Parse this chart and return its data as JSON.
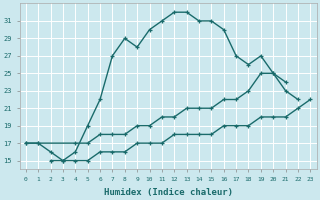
{
  "xlabel": "Humidex (Indice chaleur)",
  "bg_color": "#cce8ee",
  "grid_color": "#ffffff",
  "line_color": "#1a6b6b",
  "xticks": [
    0,
    1,
    2,
    3,
    4,
    5,
    6,
    7,
    8,
    9,
    10,
    11,
    12,
    13,
    14,
    15,
    16,
    17,
    18,
    19,
    20,
    21,
    22,
    23
  ],
  "yticks": [
    15,
    17,
    19,
    21,
    23,
    25,
    27,
    29,
    31
  ],
  "line1_x": [
    0,
    1,
    2,
    3,
    4,
    5,
    6,
    7,
    8,
    9,
    10,
    11,
    12,
    13,
    14,
    15,
    16,
    17,
    18,
    19,
    20,
    21,
    22
  ],
  "line1_y": [
    17,
    17,
    16,
    15,
    16,
    19,
    22,
    27,
    29,
    28,
    30,
    31,
    32,
    32,
    31,
    31,
    30,
    27,
    26,
    27,
    25,
    23,
    22
  ],
  "line2_x": [
    0,
    1,
    4,
    5,
    6,
    7,
    8,
    9,
    10,
    11,
    12,
    13,
    14,
    15,
    16,
    17,
    18,
    19,
    20,
    21
  ],
  "line2_y": [
    17,
    17,
    17,
    17,
    18,
    18,
    18,
    19,
    19,
    20,
    20,
    21,
    21,
    21,
    22,
    22,
    23,
    25,
    25,
    24
  ],
  "line3_x": [
    2,
    3,
    4,
    5,
    6,
    7,
    8,
    9,
    10,
    11,
    12,
    13,
    14,
    15,
    16,
    17,
    18,
    19,
    20,
    21,
    22,
    23
  ],
  "line3_y": [
    15,
    15,
    15,
    15,
    16,
    16,
    16,
    17,
    17,
    17,
    18,
    18,
    18,
    18,
    19,
    19,
    19,
    20,
    20,
    20,
    21,
    22
  ]
}
